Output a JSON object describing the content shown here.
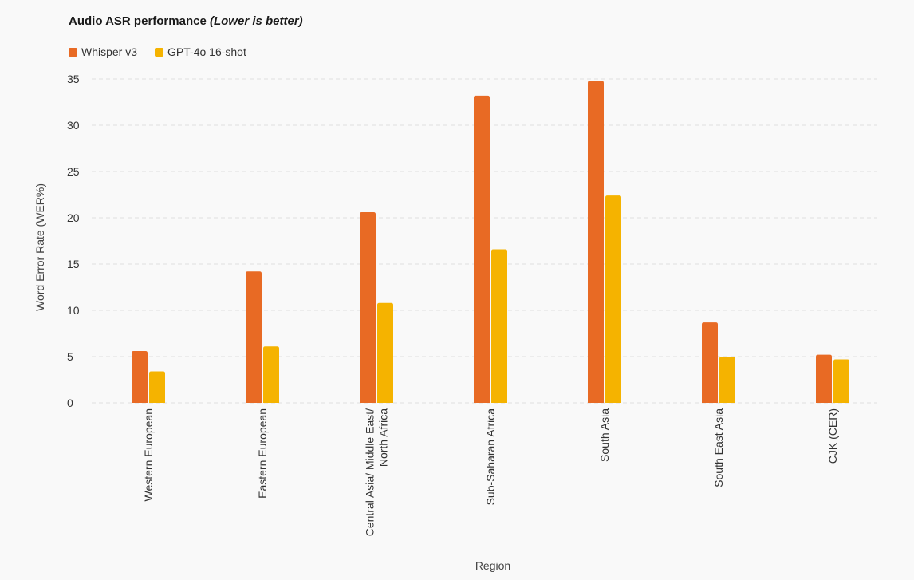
{
  "chart_data": {
    "type": "bar",
    "title_main": "Audio ASR performance",
    "title_note": "(Lower is better)",
    "xlabel": "Region",
    "ylabel": "Word Error Rate (WER%)",
    "ylim": [
      0,
      35
    ],
    "yticks": [
      0,
      5,
      10,
      15,
      20,
      25,
      30,
      35
    ],
    "grid": true,
    "legend_position": "top-left",
    "categories": [
      [
        "Western European"
      ],
      [
        "Eastern European"
      ],
      [
        "Central Asia/ Middle East/",
        "North Africa"
      ],
      [
        "Sub-Saharan Africa"
      ],
      [
        "South Asia"
      ],
      [
        "South East Asia"
      ],
      [
        "CJK (CER)"
      ]
    ],
    "series": [
      {
        "name": "Whisper v3",
        "color": "#e86a24",
        "values": [
          5.6,
          14.2,
          20.6,
          33.2,
          34.8,
          8.7,
          5.2
        ]
      },
      {
        "name": "GPT-4o 16-shot",
        "color": "#f5b300",
        "values": [
          3.4,
          6.1,
          10.8,
          16.6,
          22.4,
          5.0,
          4.7
        ]
      }
    ]
  }
}
